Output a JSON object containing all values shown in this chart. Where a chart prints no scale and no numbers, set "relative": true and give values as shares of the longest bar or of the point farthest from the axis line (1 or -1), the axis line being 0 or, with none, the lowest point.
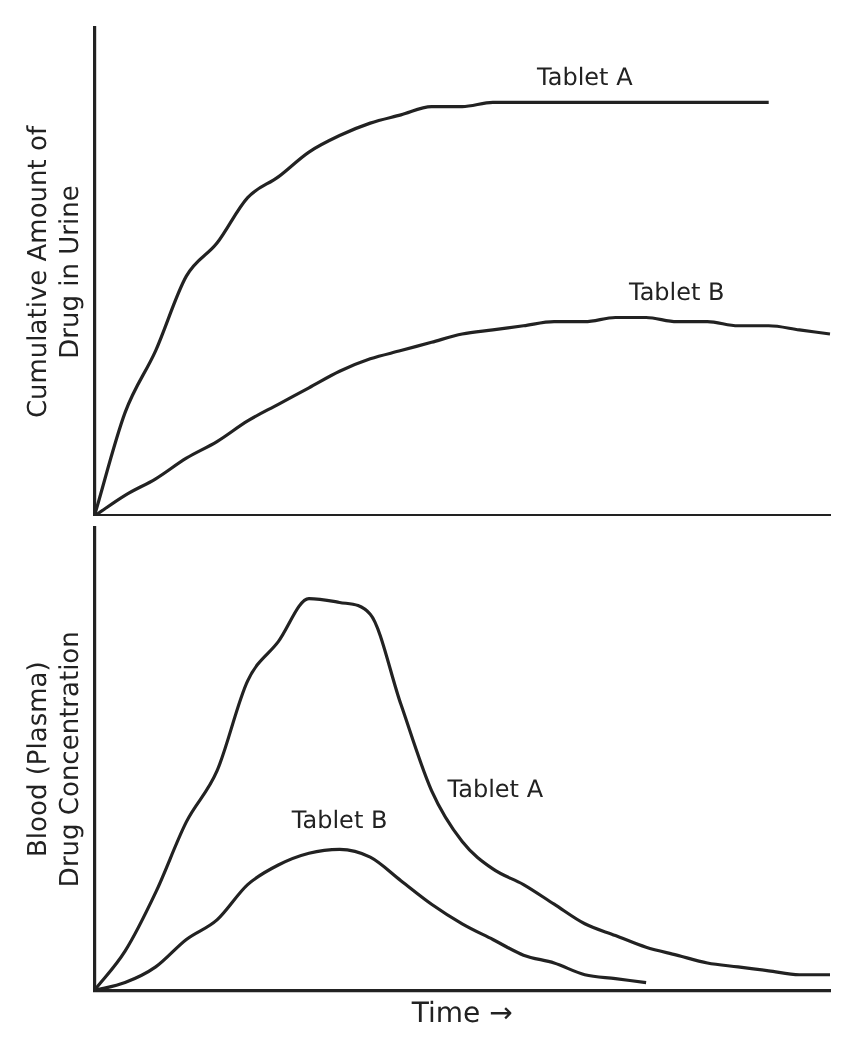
{
  "chart_data": [
    {
      "type": "line",
      "ylabel": "Cumulative Amount of Drug in Urine",
      "relative": true,
      "tick_labels": false,
      "grid": false,
      "legend": false,
      "marker": "none",
      "line_style": "solid",
      "categories": [
        null,
        null,
        null,
        null,
        null,
        null,
        null,
        null,
        null,
        null,
        null,
        null,
        null,
        null,
        null,
        null,
        null,
        null,
        null,
        null,
        null,
        null,
        null,
        null,
        null
      ],
      "series": [
        {
          "name": "Tablet A",
          "color": "#222222",
          "values": [
            0,
            0.25,
            0.4,
            0.58,
            0.66,
            0.77,
            0.82,
            0.88,
            0.92,
            0.95,
            0.97,
            0.99,
            0.99,
            1,
            1,
            1,
            1,
            1,
            1,
            1,
            1,
            1,
            1,
            null,
            null
          ]
        },
        {
          "name": "Tablet B",
          "color": "#222222",
          "values": [
            0,
            0.05,
            0.09,
            0.14,
            0.18,
            0.23,
            0.27,
            0.31,
            0.35,
            0.38,
            0.4,
            0.42,
            0.44,
            0.45,
            0.46,
            0.47,
            0.47,
            0.48,
            0.48,
            0.47,
            0.47,
            0.46,
            0.46,
            0.45,
            0.44
          ]
        }
      ]
    },
    {
      "type": "line",
      "ylabel": "Blood (Plasma) Drug Concentration",
      "xlabel": "Time →",
      "relative": true,
      "tick_labels": false,
      "grid": false,
      "legend": false,
      "marker": "none",
      "line_style": "solid",
      "categories": [
        null,
        null,
        null,
        null,
        null,
        null,
        null,
        null,
        null,
        null,
        null,
        null,
        null,
        null,
        null,
        null,
        null,
        null,
        null,
        null,
        null,
        null,
        null,
        null,
        null
      ],
      "series": [
        {
          "name": "Tablet A",
          "color": "#222222",
          "values": [
            0,
            0.1,
            0.25,
            0.43,
            0.56,
            0.79,
            0.89,
            1,
            0.99,
            0.96,
            0.73,
            0.51,
            0.38,
            0.31,
            0.27,
            0.22,
            0.17,
            0.14,
            0.11,
            0.09,
            0.07,
            0.06,
            0.05,
            0.04,
            0.04
          ]
        },
        {
          "name": "Tablet B",
          "color": "#222222",
          "values": [
            0,
            0.02,
            0.06,
            0.13,
            0.18,
            0.27,
            0.32,
            0.35,
            0.36,
            0.34,
            0.28,
            0.22,
            0.17,
            0.13,
            0.09,
            0.07,
            0.04,
            0.03,
            0.02,
            null,
            null,
            null,
            null,
            null,
            null
          ]
        }
      ]
    }
  ]
}
